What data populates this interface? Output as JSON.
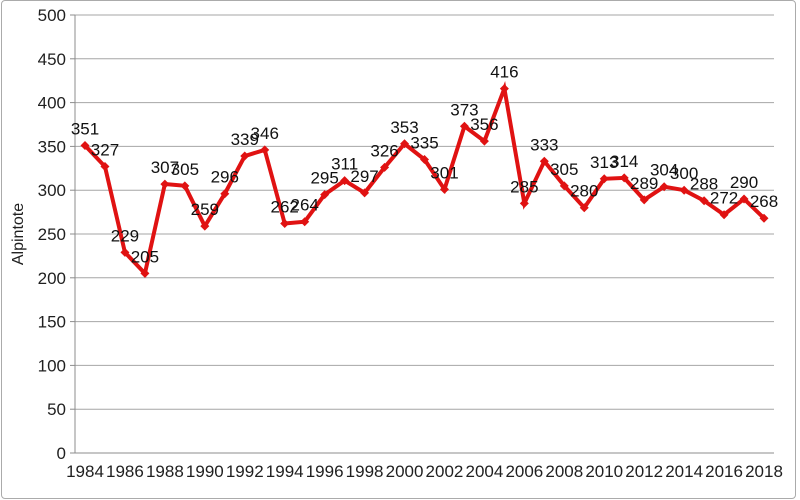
{
  "chart_data": {
    "type": "line",
    "title": "",
    "xlabel": "",
    "ylabel": "Alpintote",
    "x": [
      1984,
      1985,
      1986,
      1987,
      1988,
      1989,
      1990,
      1991,
      1992,
      1993,
      1994,
      1995,
      1996,
      1997,
      1998,
      1999,
      2000,
      2001,
      2002,
      2003,
      2004,
      2005,
      2006,
      2007,
      2008,
      2009,
      2010,
      2011,
      2012,
      2013,
      2014,
      2015,
      2016,
      2017,
      2018
    ],
    "values": [
      351,
      327,
      229,
      205,
      307,
      305,
      259,
      296,
      339,
      346,
      262,
      264,
      295,
      311,
      297,
      326,
      353,
      335,
      301,
      373,
      356,
      416,
      285,
      333,
      305,
      280,
      313,
      314,
      289,
      304,
      300,
      288,
      272,
      290,
      268
    ],
    "ylim": [
      0,
      500
    ],
    "ytick_step": 50,
    "xtick_label_every": 2,
    "grid": true,
    "legend": "none",
    "data_labels": "above",
    "marker": "diamond",
    "colors": {
      "series_line": "#e01212",
      "marker_fill": "#e01212",
      "gridline": "#a6a6a6",
      "axis_line": "#8c8c8c",
      "text": "#1f1f1f",
      "chart_border": "#ababab",
      "background": "#ffffff"
    }
  }
}
